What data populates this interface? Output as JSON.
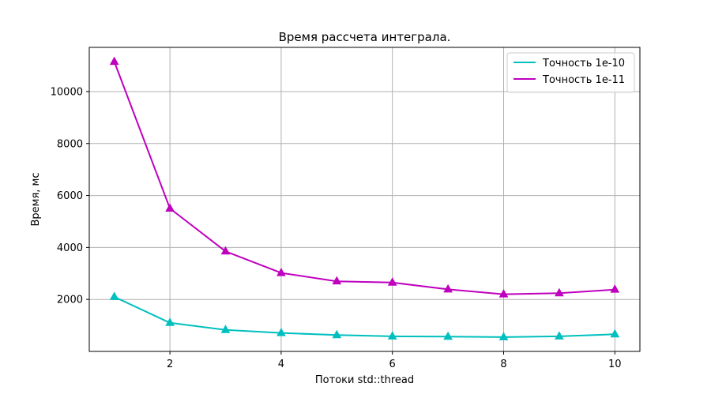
{
  "chart_data": {
    "type": "line",
    "title": "Время рассчета интеграла.",
    "xlabel": "Потоки std::thread",
    "ylabel": "Время, мс",
    "x": [
      1,
      2,
      3,
      4,
      5,
      6,
      7,
      8,
      9,
      10
    ],
    "series": [
      {
        "name": "Точность 1e-10",
        "color": "#00bfbf",
        "marker": "triangle-up",
        "values": [
          2100,
          1100,
          830,
          710,
          630,
          580,
          570,
          550,
          580,
          660
        ]
      },
      {
        "name": "Точность 1e-11",
        "color": "#bf00bf",
        "marker": "triangle-up",
        "values": [
          11150,
          5500,
          3850,
          3020,
          2700,
          2650,
          2390,
          2200,
          2240,
          2380
        ]
      }
    ],
    "xlim": [
      0.55,
      10.45
    ],
    "ylim": [
      0,
      11700
    ],
    "xticks": [
      2,
      4,
      6,
      8,
      10
    ],
    "yticks": [
      2000,
      4000,
      6000,
      8000,
      10000
    ],
    "grid": true,
    "legend_position": "top-right"
  }
}
